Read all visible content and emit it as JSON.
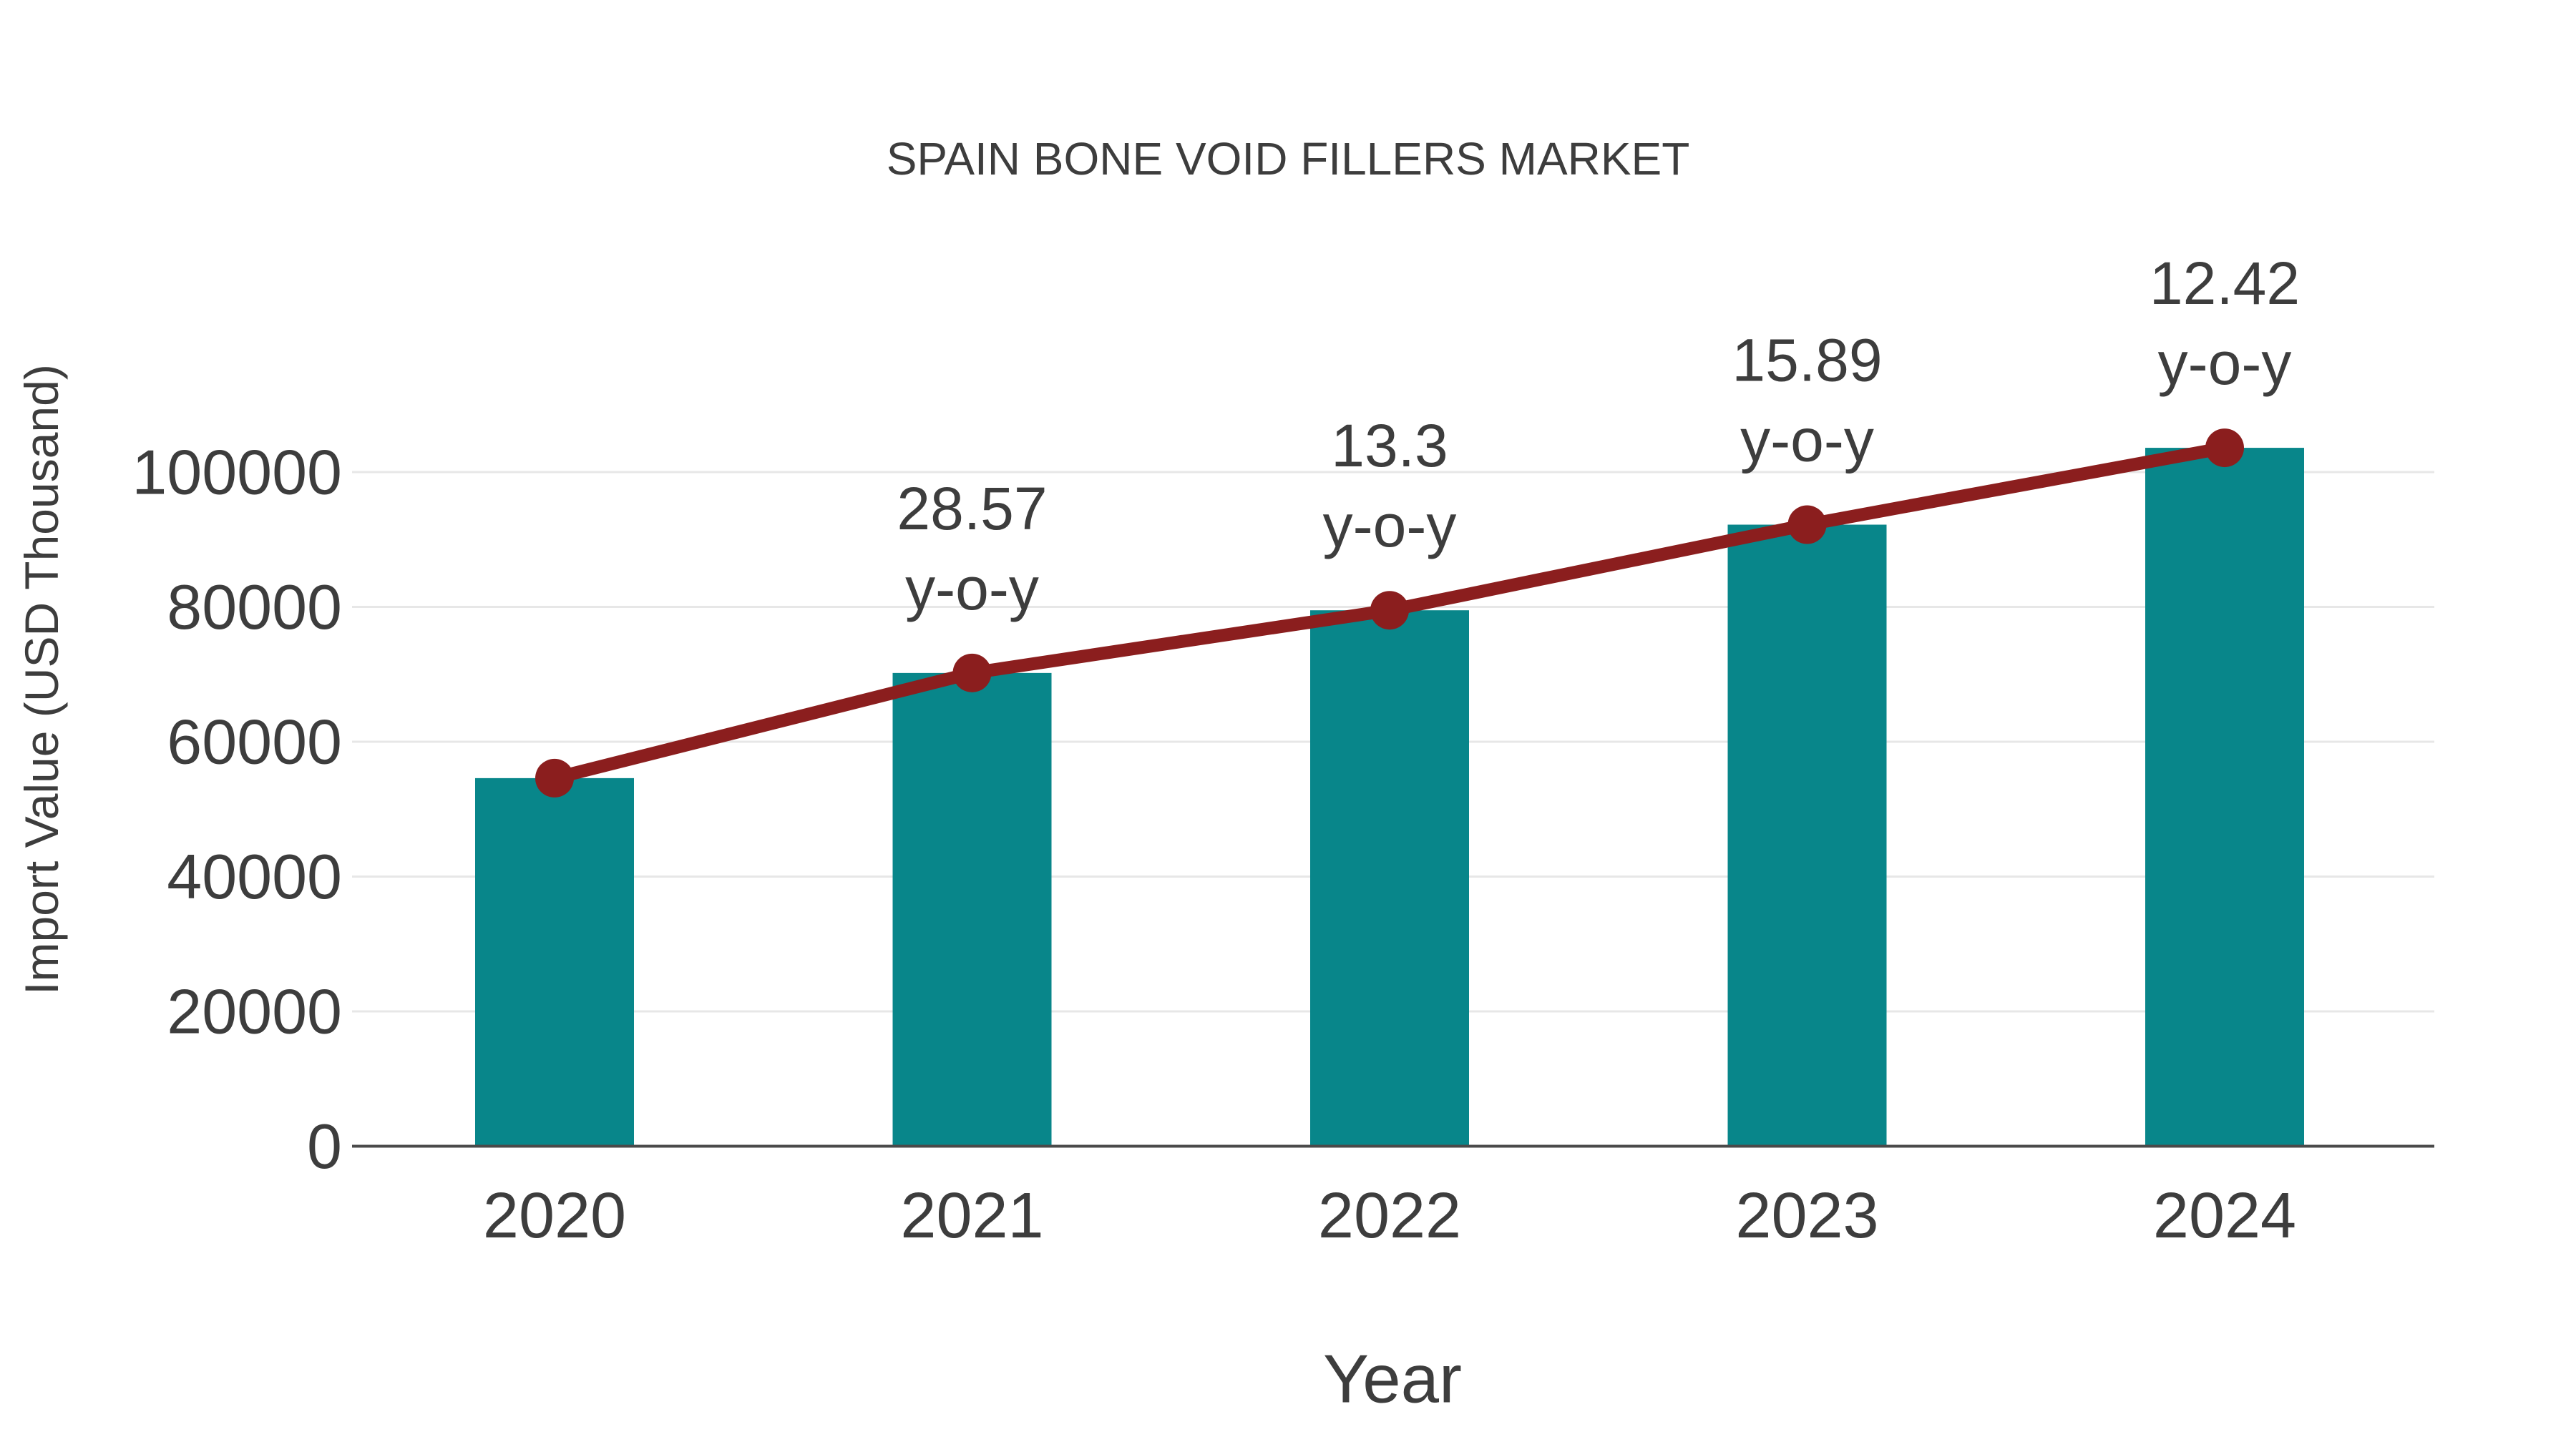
{
  "chart_data": {
    "type": "bar",
    "title": "SPAIN BONE VOID FILLERS MARKET",
    "xlabel": "Year",
    "ylabel": "Import Value (USD Thousand)",
    "categories": [
      "2020",
      "2021",
      "2022",
      "2023",
      "2024"
    ],
    "series": [
      {
        "name": "Import Value (USD Thousand)",
        "type": "bar",
        "values": [
          54600,
          70200,
          79500,
          92200,
          103600
        ],
        "color": "#08868a"
      },
      {
        "name": "y-o-y growth (%)",
        "type": "line",
        "values": [
          null,
          28.57,
          13.3,
          15.89,
          12.42
        ],
        "color": "#8b1e1e"
      }
    ],
    "annotations": [
      {
        "category": "2021",
        "value_label": "28.57",
        "suffix_label": "y-o-y"
      },
      {
        "category": "2022",
        "value_label": "13.3",
        "suffix_label": "y-o-y"
      },
      {
        "category": "2023",
        "value_label": "15.89",
        "suffix_label": "y-o-y"
      },
      {
        "category": "2024",
        "value_label": "12.42",
        "suffix_label": "y-o-y"
      }
    ],
    "yticks": [
      0,
      20000,
      40000,
      60000,
      80000,
      100000
    ],
    "ytick_labels": [
      "0",
      "20000",
      "40000",
      "60000",
      "80000",
      "100000"
    ],
    "ylim": [
      0,
      110000
    ],
    "grid": true,
    "legend_position": "none",
    "colors": {
      "bar": "#08868a",
      "line": "#8b1e1e",
      "marker": "#8b1e1e",
      "text": "#3d3d3d",
      "grid": "#e7e7e7",
      "axis": "#4a4a4a",
      "background": "#ffffff"
    }
  }
}
